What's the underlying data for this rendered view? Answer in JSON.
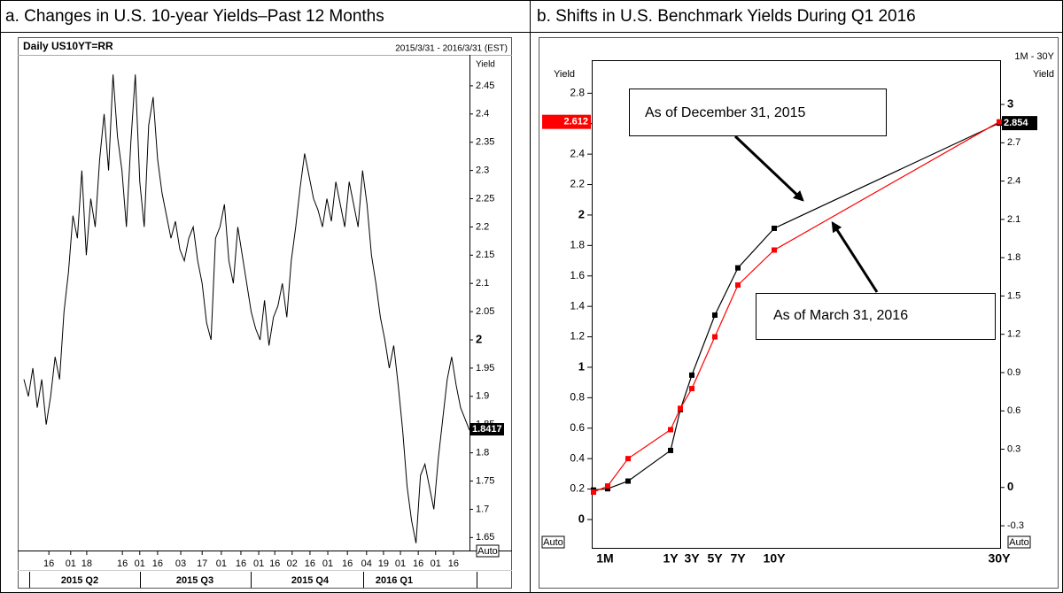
{
  "chart_data": [
    {
      "type": "line",
      "caption": "a. Changes in U.S. 10-year Yields–Past 12 Months",
      "title": "Daily US10YT=RR",
      "subtitle": "2015/3/31 - 2016/3/31 (EST)",
      "y_label": "Yield",
      "color": "#000000",
      "values": [
        1.93,
        1.9,
        1.95,
        1.88,
        1.93,
        1.85,
        1.9,
        1.97,
        1.93,
        2.05,
        2.12,
        2.22,
        2.18,
        2.3,
        2.15,
        2.25,
        2.2,
        2.32,
        2.4,
        2.3,
        2.47,
        2.36,
        2.3,
        2.2,
        2.35,
        2.47,
        2.28,
        2.2,
        2.38,
        2.43,
        2.32,
        2.26,
        2.22,
        2.18,
        2.21,
        2.16,
        2.14,
        2.18,
        2.2,
        2.14,
        2.1,
        2.03,
        2.0,
        2.18,
        2.2,
        2.24,
        2.14,
        2.1,
        2.2,
        2.15,
        2.1,
        2.05,
        2.02,
        2.0,
        2.07,
        1.99,
        2.04,
        2.06,
        2.1,
        2.04,
        2.14,
        2.2,
        2.27,
        2.33,
        2.29,
        2.25,
        2.23,
        2.2,
        2.25,
        2.21,
        2.28,
        2.24,
        2.2,
        2.28,
        2.24,
        2.2,
        2.3,
        2.24,
        2.15,
        2.1,
        2.04,
        2.0,
        1.95,
        1.99,
        1.92,
        1.84,
        1.74,
        1.68,
        1.64,
        1.76,
        1.78,
        1.74,
        1.7,
        1.79,
        1.86,
        1.93,
        1.97,
        1.92,
        1.88,
        1.86,
        1.84
      ],
      "xlim": [
        0,
        100
      ],
      "xticks": [
        {
          "value": 5.6,
          "label": "16"
        },
        {
          "value": 10.5,
          "label": "01"
        },
        {
          "value": 14.1,
          "label": "18"
        },
        {
          "value": 22.1,
          "label": "16"
        },
        {
          "value": 26.0,
          "label": "01"
        },
        {
          "value": 30.0,
          "label": "16"
        },
        {
          "value": 35.2,
          "label": "03"
        },
        {
          "value": 40.0,
          "label": "17"
        },
        {
          "value": 44.3,
          "label": "01"
        },
        {
          "value": 48.7,
          "label": "16"
        },
        {
          "value": 52.7,
          "label": "01"
        },
        {
          "value": 56.3,
          "label": "16"
        },
        {
          "value": 60.2,
          "label": "02"
        },
        {
          "value": 64.2,
          "label": "16"
        },
        {
          "value": 68.2,
          "label": "01"
        },
        {
          "value": 72.6,
          "label": "16"
        },
        {
          "value": 76.9,
          "label": "04"
        },
        {
          "value": 80.7,
          "label": "19"
        },
        {
          "value": 84.5,
          "label": "01"
        },
        {
          "value": 88.5,
          "label": "16"
        },
        {
          "value": 92.4,
          "label": "01"
        },
        {
          "value": 96.4,
          "label": "16"
        }
      ],
      "quarters": [
        "2015 Q2",
        "2015 Q3",
        "2015 Q4",
        "2016 Q1"
      ],
      "ylim": [
        1.627,
        2.5
      ],
      "yticks": [
        2.45,
        2.4,
        2.35,
        2.3,
        2.25,
        2.2,
        2.15,
        2.1,
        2.05,
        2,
        1.95,
        1.9,
        1.85,
        1.8,
        1.75,
        1.7,
        1.65
      ],
      "last_value": 1.8417,
      "auto_label": "Auto"
    },
    {
      "type": "line",
      "caption": "b. Shifts in U.S. Benchmark Yields During Q1 2016",
      "subtitle": "1M - 30Y",
      "y_label": "Yield",
      "y2_label": "Yield",
      "categories": [
        "1M",
        null,
        null,
        "1Y",
        null,
        "3Y",
        "5Y",
        "7Y",
        "10Y",
        "30Y"
      ],
      "series": [
        {
          "name": "As of December 31, 2015",
          "color": "#000000",
          "axis": "y2",
          "values": [
            -0.02,
            -0.01,
            0.05,
            0.29,
            0.61,
            0.88,
            1.35,
            1.72,
            2.03,
            2.854
          ]
        },
        {
          "name": "As of March 31, 2016",
          "color": "#ff0000",
          "values": [
            0.18,
            0.22,
            0.4,
            0.59,
            0.73,
            0.86,
            1.2,
            1.54,
            1.77,
            2.612
          ]
        }
      ],
      "ylim": [
        -0.192,
        3.017
      ],
      "yticks": [
        0,
        0.2,
        0.4,
        0.6,
        0.8,
        1,
        1.2,
        1.4,
        1.6,
        1.8,
        2,
        2.2,
        2.4,
        2.6,
        2.8
      ],
      "y2lim": [
        -0.48,
        3.347
      ],
      "y2ticks": [
        -0.3,
        0,
        0.3,
        0.6,
        0.9,
        1.2,
        1.5,
        1.8,
        2.1,
        2.4,
        2.7,
        3
      ],
      "auto_label": "Auto"
    }
  ]
}
